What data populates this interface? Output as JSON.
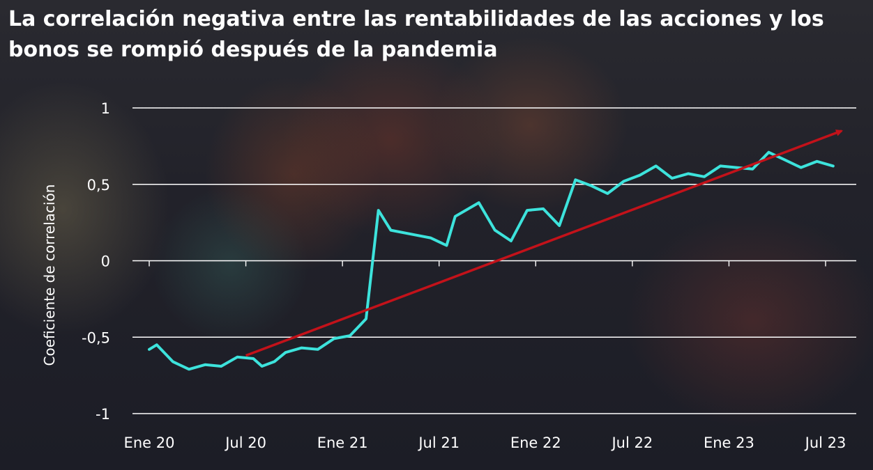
{
  "chart_data": {
    "type": "line",
    "title": "La correlación negativa entre las rentabilidades de las acciones y los bonos se rompió después de la pandemia",
    "ylabel": "Coeficiente de correlación",
    "xlabel": "",
    "ylim": [
      -1,
      1
    ],
    "yticks": [
      {
        "value": 1,
        "label": "1"
      },
      {
        "value": 0.5,
        "label": "0,5"
      },
      {
        "value": 0,
        "label": "0"
      },
      {
        "value": -0.5,
        "label": "-0,5"
      },
      {
        "value": -1,
        "label": "-1"
      }
    ],
    "xrange": [
      "2020-01",
      "2023-10"
    ],
    "xticks": [
      {
        "date": "2020-01",
        "label": "Ene 20"
      },
      {
        "date": "2020-07",
        "label": "Jul 20"
      },
      {
        "date": "2021-01",
        "label": "Ene 21"
      },
      {
        "date": "2021-07",
        "label": "Jul 21"
      },
      {
        "date": "2022-01",
        "label": "Ene 22"
      },
      {
        "date": "2022-07",
        "label": "Jul 22"
      },
      {
        "date": "2023-01",
        "label": "Ene 23"
      },
      {
        "date": "2023-07",
        "label": "Jul 23"
      }
    ],
    "grid": true,
    "series": [
      {
        "color": "#3de3dc",
        "points": [
          [
            "2020-01-01",
            -0.58
          ],
          [
            "2020-01-15",
            -0.55
          ],
          [
            "2020-02-15",
            -0.66
          ],
          [
            "2020-03-15",
            -0.71
          ],
          [
            "2020-04-15",
            -0.68
          ],
          [
            "2020-05-15",
            -0.69
          ],
          [
            "2020-06-15",
            -0.63
          ],
          [
            "2020-07-15",
            -0.64
          ],
          [
            "2020-08-01",
            -0.69
          ],
          [
            "2020-08-24",
            -0.66
          ],
          [
            "2020-09-15",
            -0.6
          ],
          [
            "2020-10-15",
            -0.57
          ],
          [
            "2020-11-15",
            -0.58
          ],
          [
            "2020-12-15",
            -0.51
          ],
          [
            "2021-01-15",
            -0.49
          ],
          [
            "2021-02-15",
            -0.38
          ],
          [
            "2021-03-08",
            0.33
          ],
          [
            "2021-04-01",
            0.2
          ],
          [
            "2021-05-15",
            0.17
          ],
          [
            "2021-06-15",
            0.15
          ],
          [
            "2021-07-15",
            0.1
          ],
          [
            "2021-08-01",
            0.29
          ],
          [
            "2021-09-15",
            0.38
          ],
          [
            "2021-10-15",
            0.2
          ],
          [
            "2021-11-15",
            0.13
          ],
          [
            "2021-12-15",
            0.33
          ],
          [
            "2022-01-15",
            0.34
          ],
          [
            "2022-02-15",
            0.23
          ],
          [
            "2022-03-15",
            0.53
          ],
          [
            "2022-04-15",
            0.49
          ],
          [
            "2022-05-15",
            0.44
          ],
          [
            "2022-06-15",
            0.52
          ],
          [
            "2022-07-15",
            0.56
          ],
          [
            "2022-08-15",
            0.62
          ],
          [
            "2022-09-15",
            0.54
          ],
          [
            "2022-10-15",
            0.57
          ],
          [
            "2022-11-15",
            0.55
          ],
          [
            "2022-12-15",
            0.62
          ],
          [
            "2023-01-15",
            0.61
          ],
          [
            "2023-02-15",
            0.6
          ],
          [
            "2023-03-15",
            0.71
          ],
          [
            "2023-04-15",
            0.66
          ],
          [
            "2023-05-15",
            0.61
          ],
          [
            "2023-06-15",
            0.65
          ],
          [
            "2023-07-15",
            0.62
          ]
        ]
      }
    ],
    "trend_arrow": {
      "color": "#c3121a",
      "start": [
        "2020-07-01",
        -0.62
      ],
      "end": [
        "2023-08-01",
        0.85
      ]
    }
  }
}
